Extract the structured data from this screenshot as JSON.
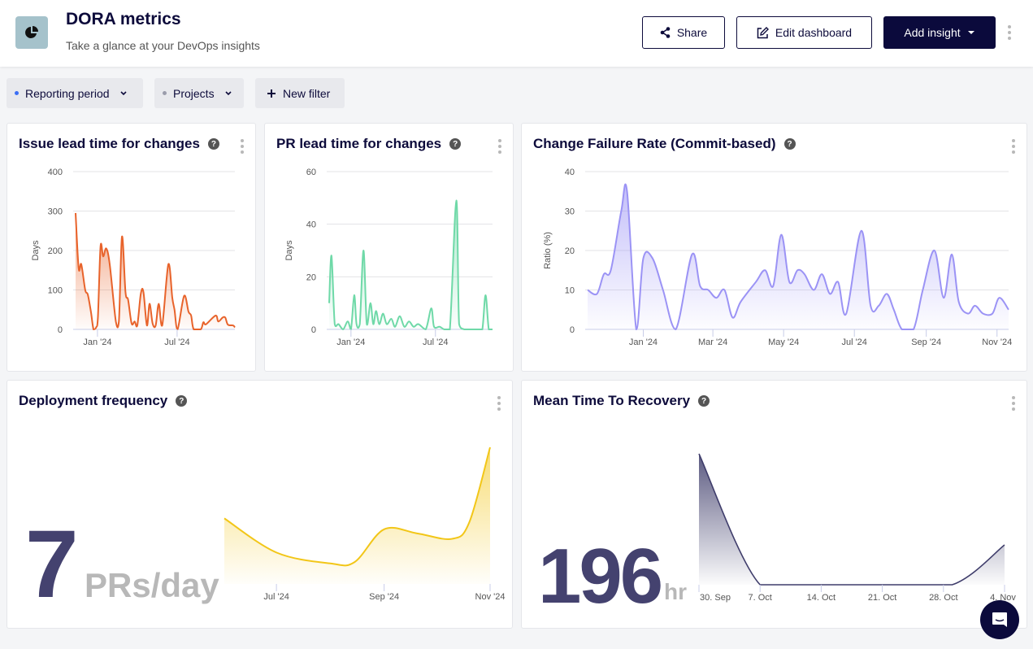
{
  "header": {
    "title": "DORA metrics",
    "subtitle": "Take a glance at your DevOps insights",
    "logo_icon": "pie-chart-icon",
    "share_label": "Share",
    "edit_label": "Edit dashboard",
    "add_insight_label": "Add insight"
  },
  "filters": [
    {
      "label": "Reporting period",
      "dot_color": "#3b6ef5"
    },
    {
      "label": "Projects",
      "dot_color": "#9a9cab"
    },
    {
      "label": "New filter"
    }
  ],
  "cards": [
    {
      "title": "Issue lead time for changes"
    },
    {
      "title": "PR lead time for changes"
    },
    {
      "title": "Change Failure Rate (Commit-based)"
    },
    {
      "title": "Deployment frequency",
      "big_value": "7",
      "unit": "PRs/day"
    },
    {
      "title": "Mean Time To Recovery",
      "big_value": "196",
      "unit": "hr"
    }
  ],
  "chart_data": [
    {
      "type": "area",
      "color": "#e8632b",
      "ylabel": "Days",
      "ylim": [
        0,
        400
      ],
      "yticks": [
        0,
        100,
        200,
        300,
        400
      ],
      "xlim": [
        "2023-11-12",
        "2024-11-10"
      ],
      "xticks": [
        {
          "label": "Jan '24",
          "date": "2024-01-01"
        },
        {
          "label": "Jul '24",
          "date": "2024-07-01"
        }
      ],
      "x": [
        "2023-11-12",
        "2023-11-19",
        "2023-11-25",
        "2023-12-04",
        "2023-12-10",
        "2023-12-17",
        "2023-12-23",
        "2023-12-29",
        "2024-01-02",
        "2024-01-08",
        "2024-01-14",
        "2024-01-21",
        "2024-01-29",
        "2024-02-12",
        "2024-02-19",
        "2024-02-26",
        "2024-03-05",
        "2024-03-11",
        "2024-03-19",
        "2024-03-26",
        "2024-04-01",
        "2024-04-09",
        "2024-04-15",
        "2024-04-23",
        "2024-04-29",
        "2024-05-06",
        "2024-05-13",
        "2024-05-20",
        "2024-05-28",
        "2024-06-11",
        "2024-06-20",
        "2024-06-25",
        "2024-07-02",
        "2024-07-17",
        "2024-07-27",
        "2024-08-02",
        "2024-08-08",
        "2024-08-24",
        "2024-08-30",
        "2024-09-05",
        "2024-09-27",
        "2024-10-03",
        "2024-10-13",
        "2024-10-19",
        "2024-10-25",
        "2024-11-06",
        "2024-11-10"
      ],
      "y": [
        295,
        155,
        165,
        100,
        88,
        45,
        0,
        5,
        30,
        210,
        185,
        205,
        165,
        20,
        20,
        235,
        95,
        75,
        15,
        20,
        10,
        90,
        95,
        10,
        65,
        15,
        10,
        65,
        10,
        165,
        80,
        50,
        0,
        85,
        45,
        35,
        0,
        0,
        18,
        13,
        35,
        20,
        30,
        30,
        12,
        10,
        5
      ]
    },
    {
      "type": "area",
      "color": "#6fd9a8",
      "ylabel": "Days",
      "ylim": [
        0,
        60
      ],
      "yticks": [
        0,
        20,
        40,
        60
      ],
      "xlim": [
        "2023-11-15",
        "2024-11-01"
      ],
      "xticks": [
        {
          "label": "Jan '24",
          "date": "2024-01-01"
        },
        {
          "label": "Jul '24",
          "date": "2024-07-01"
        }
      ],
      "x": [
        "2023-11-15",
        "2023-11-20",
        "2023-11-27",
        "2023-12-05",
        "2023-12-15",
        "2023-12-25",
        "2024-01-01",
        "2024-01-08",
        "2024-01-13",
        "2024-01-20",
        "2024-01-28",
        "2024-02-04",
        "2024-02-12",
        "2024-02-18",
        "2024-02-24",
        "2024-03-02",
        "2024-03-10",
        "2024-03-18",
        "2024-03-28",
        "2024-04-05",
        "2024-04-15",
        "2024-04-25",
        "2024-05-05",
        "2024-05-15",
        "2024-05-25",
        "2024-06-10",
        "2024-06-22",
        "2024-06-28",
        "2024-07-10",
        "2024-07-20",
        "2024-08-01",
        "2024-08-15",
        "2024-08-21",
        "2024-09-01",
        "2024-09-15",
        "2024-10-01",
        "2024-10-10",
        "2024-10-17",
        "2024-10-24",
        "2024-11-01"
      ],
      "y": [
        10,
        28,
        2,
        2,
        0,
        3,
        0,
        13,
        2,
        2,
        30,
        2,
        10,
        2,
        7,
        2,
        6,
        2,
        4,
        1,
        5,
        1,
        3,
        1,
        2,
        0,
        8,
        1,
        1,
        0,
        0,
        49,
        2,
        0,
        0,
        0,
        0,
        13,
        0,
        0
      ]
    },
    {
      "type": "area",
      "color": "#9b93f5",
      "ylabel": "Ratio (%)",
      "ylim": [
        0,
        40
      ],
      "yticks": [
        0,
        10,
        20,
        30,
        40
      ],
      "xlim": [
        "2023-11-14",
        "2024-11-11"
      ],
      "xticks": [
        {
          "label": "Jan '24",
          "date": "2024-01-01"
        },
        {
          "label": "Mar '24",
          "date": "2024-03-01"
        },
        {
          "label": "May '24",
          "date": "2024-05-01"
        },
        {
          "label": "Jul '24",
          "date": "2024-07-01"
        },
        {
          "label": "Sep '24",
          "date": "2024-09-01"
        },
        {
          "label": "Nov '24",
          "date": "2024-11-01"
        }
      ],
      "x": [
        "2023-11-14",
        "2023-11-22",
        "2023-11-28",
        "2023-12-04",
        "2023-12-13",
        "2023-12-18",
        "2023-12-26",
        "2024-01-01",
        "2024-01-09",
        "2024-01-18",
        "2024-01-29",
        "2024-02-12",
        "2024-02-19",
        "2024-02-26",
        "2024-03-04",
        "2024-03-11",
        "2024-03-18",
        "2024-03-25",
        "2024-04-07",
        "2024-04-15",
        "2024-04-22",
        "2024-04-29",
        "2024-05-06",
        "2024-05-13",
        "2024-05-19",
        "2024-05-27",
        "2024-06-03",
        "2024-06-10",
        "2024-06-17",
        "2024-06-24",
        "2024-07-07",
        "2024-07-15",
        "2024-07-22",
        "2024-07-29",
        "2024-08-04",
        "2024-08-11",
        "2024-08-21",
        "2024-08-29",
        "2024-09-08",
        "2024-09-16",
        "2024-09-23",
        "2024-09-29",
        "2024-10-07",
        "2024-10-13",
        "2024-10-20",
        "2024-10-28",
        "2024-11-03",
        "2024-11-11"
      ],
      "y": [
        10,
        9,
        14,
        15,
        30,
        35,
        0,
        18,
        18,
        10,
        0,
        19,
        11,
        10,
        8,
        10,
        3,
        7,
        12,
        15,
        11,
        24,
        12,
        15,
        14,
        10,
        14,
        9,
        12,
        4,
        25,
        6,
        6,
        9,
        5,
        0,
        0,
        10,
        20,
        8,
        19,
        7,
        4,
        6,
        4,
        4,
        8,
        5
      ]
    },
    {
      "type": "area",
      "color": "#f2c618",
      "xlim": [
        "2024-06-01",
        "2024-11-01"
      ],
      "xticks": [
        {
          "label": "Jul '24",
          "date": "2024-07-01"
        },
        {
          "label": "Sep '24",
          "date": "2024-09-01"
        },
        {
          "label": "Nov '24",
          "date": "2024-11-01"
        }
      ],
      "x": [
        "2024-06-01",
        "2024-07-01",
        "2024-08-01",
        "2024-08-15",
        "2024-09-01",
        "2024-09-20",
        "2024-10-10",
        "2024-10-20",
        "2024-11-01"
      ],
      "y": [
        4.8,
        2.3,
        1.5,
        1.6,
        4.0,
        3.7,
        3.3,
        4.5,
        10
      ]
    },
    {
      "type": "area",
      "color": "#3f3d6b",
      "xlim": [
        "2024-09-30",
        "2024-11-04"
      ],
      "xticks": [
        {
          "label": "30. Sep",
          "date": "2024-09-30"
        },
        {
          "label": "7. Oct",
          "date": "2024-10-07"
        },
        {
          "label": "14. Oct",
          "date": "2024-10-14"
        },
        {
          "label": "21. Oct",
          "date": "2024-10-21"
        },
        {
          "label": "28. Oct",
          "date": "2024-10-28"
        },
        {
          "label": "4. Nov",
          "date": "2024-11-04"
        }
      ],
      "x": [
        "2024-09-30",
        "2024-10-07",
        "2024-10-14",
        "2024-10-21",
        "2024-10-29",
        "2024-11-04"
      ],
      "y": [
        161,
        0,
        0,
        0,
        0,
        49
      ]
    }
  ]
}
